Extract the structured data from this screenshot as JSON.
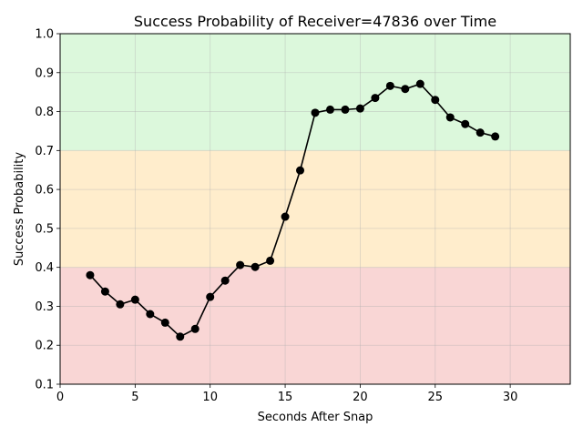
{
  "chart_data": {
    "type": "line",
    "title": "Success Probability of Receiver=47836 over Time",
    "xlabel": "Seconds After Snap",
    "ylabel": "Success Probability",
    "xlim": [
      0,
      34
    ],
    "ylim": [
      0.1,
      1.0
    ],
    "x_ticks": [
      0,
      5,
      10,
      15,
      20,
      25,
      30
    ],
    "y_ticks": [
      0.1,
      0.2,
      0.3,
      0.4,
      0.5,
      0.6,
      0.7,
      0.8,
      0.9,
      1.0
    ],
    "x_tick_labels": [
      "0",
      "5",
      "10",
      "15",
      "20",
      "25",
      "30"
    ],
    "y_tick_labels": [
      "0.1",
      "0.2",
      "0.3",
      "0.4",
      "0.5",
      "0.6",
      "0.7",
      "0.8",
      "0.9",
      "1.0"
    ],
    "grid": true,
    "bands": [
      {
        "from": 0.1,
        "to": 0.4,
        "color": "#f9d6d5"
      },
      {
        "from": 0.4,
        "to": 0.7,
        "color": "#ffedcc"
      },
      {
        "from": 0.7,
        "to": 1.0,
        "color": "#dcf8dc"
      }
    ],
    "series": [
      {
        "color": "#000000",
        "marker": "circle",
        "x": [
          2,
          3,
          4,
          5,
          6,
          7,
          8,
          9,
          10,
          11,
          12,
          13,
          14,
          15,
          16,
          17,
          18,
          19,
          20,
          21,
          22,
          23,
          24,
          25,
          26,
          27,
          28,
          29
        ],
        "y": [
          0.38,
          0.338,
          0.305,
          0.317,
          0.28,
          0.258,
          0.222,
          0.242,
          0.324,
          0.366,
          0.406,
          0.401,
          0.417,
          0.53,
          0.649,
          0.797,
          0.805,
          0.805,
          0.808,
          0.835,
          0.866,
          0.858,
          0.871,
          0.83,
          0.785,
          0.768,
          0.746,
          0.736
        ]
      }
    ]
  }
}
